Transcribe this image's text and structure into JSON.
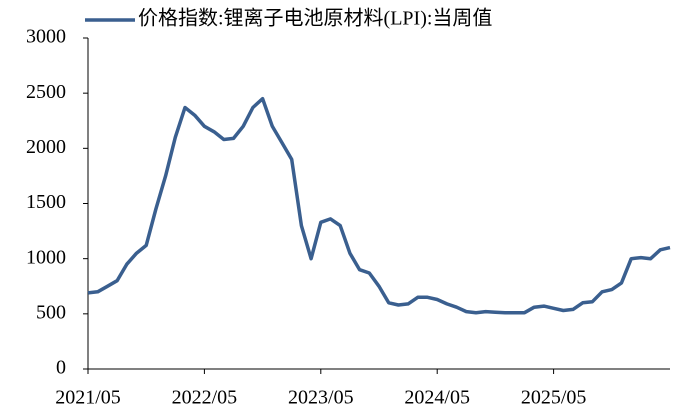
{
  "chart_data": {
    "type": "line",
    "categories": [
      "2021/05",
      null,
      null,
      null,
      null,
      null,
      null,
      null,
      null,
      null,
      null,
      null,
      "2022/05",
      null,
      null,
      null,
      null,
      null,
      null,
      null,
      null,
      null,
      null,
      null,
      "2023/05",
      null,
      null,
      null,
      null,
      null,
      null,
      null,
      null,
      null,
      null,
      null,
      "2024/05",
      null,
      null,
      null,
      null,
      null,
      null,
      null,
      null,
      null,
      null,
      null,
      "2025/05",
      null,
      null,
      null,
      null,
      null,
      null,
      null,
      null,
      null,
      null,
      null,
      null
    ],
    "series": [
      {
        "name": "价格指数:锂离子电池原材料(LPI):当周值",
        "color": "#3a5f8f",
        "values": [
          690,
          700,
          750,
          800,
          950,
          1050,
          1120,
          1450,
          1750,
          2100,
          2370,
          2300,
          2200,
          2150,
          2080,
          2090,
          2200,
          2370,
          2450,
          2200,
          2050,
          1900,
          1300,
          1000,
          1330,
          1360,
          1300,
          1050,
          900,
          870,
          750,
          600,
          580,
          590,
          650,
          650,
          630,
          590,
          560,
          520,
          510,
          520,
          515,
          510,
          510,
          510,
          560,
          570,
          550,
          530,
          540,
          600,
          610,
          700,
          720,
          780,
          1000,
          1010,
          1000,
          1080,
          1100
        ]
      }
    ],
    "ylim": [
      0,
      3000
    ],
    "yticks": [
      0,
      500,
      1000,
      1500,
      2000,
      2500,
      3000
    ],
    "grid": false,
    "legend": "top"
  }
}
